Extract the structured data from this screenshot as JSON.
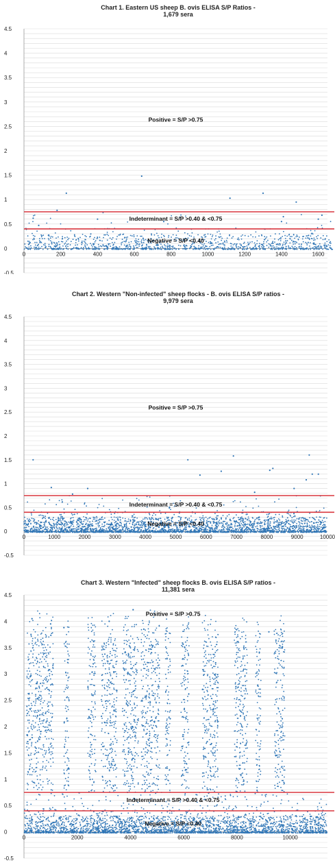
{
  "chart_data": [
    {
      "type": "scatter",
      "title": "Chart 1. Eastern US sheep B. ovis ELISA S/P Ratios -",
      "subtitle": "1,679 sera",
      "n": 1679,
      "xlim": [
        0,
        1650
      ],
      "ylim": [
        -0.5,
        4.5
      ],
      "xticks": [
        0,
        200,
        400,
        600,
        800,
        1000,
        1200,
        1400,
        1600
      ],
      "yticks": [
        -0.5,
        0,
        0.5,
        1,
        1.5,
        2,
        2.5,
        3,
        3.5,
        4,
        4.5
      ],
      "ytick_labels": [
        "-0.5",
        "0",
        "0.5",
        "1",
        "1.5",
        "2",
        "2.5",
        "3",
        "3.5",
        "4",
        "4.5"
      ],
      "grid": true,
      "marker_color": "#2e75b6",
      "threshold_color": "#d9363e",
      "thresholds": [
        0.75,
        0.4
      ],
      "annotations": [
        {
          "text": "Positive = S/P >0.75",
          "x": 825,
          "y": 2.6
        },
        {
          "text": "Indeterminant = S/P >0.40 & <0.75",
          "x": 825,
          "y": 0.57
        },
        {
          "text": "Negative = S/P <0.40",
          "x": 825,
          "y": 0.12
        }
      ],
      "highlighted_points": [
        [
          50,
          0.62
        ],
        [
          80,
          0.47
        ],
        [
          180,
          0.78
        ],
        [
          230,
          1.13
        ],
        [
          400,
          0.6
        ],
        [
          640,
          1.48
        ],
        [
          760,
          0.55
        ],
        [
          1120,
          1.03
        ],
        [
          1300,
          1.13
        ],
        [
          1410,
          0.65
        ],
        [
          1400,
          0.55
        ],
        [
          1480,
          0.95
        ],
        [
          1600,
          0.6
        ],
        [
          1620,
          0.68
        ]
      ]
    },
    {
      "type": "scatter",
      "title": "Chart 2.  Western \"Non-infected\" sheep flocks - B. ovis ELISA S/P ratios -",
      "subtitle": "9,979 sera",
      "n": 9979,
      "xlim": [
        0,
        10000
      ],
      "ylim": [
        -0.5,
        4.5
      ],
      "xticks": [
        0,
        1000,
        2000,
        3000,
        4000,
        5000,
        6000,
        7000,
        8000,
        9000,
        10000
      ],
      "yticks": [
        -0.5,
        0,
        0.5,
        1,
        1.5,
        2,
        2.5,
        3,
        3.5,
        4,
        4.5
      ],
      "ytick_labels": [
        "-0.5",
        "0",
        "0.5",
        "1",
        "1.5",
        "2",
        "2.5",
        "3",
        "3.5",
        "4",
        "4.5"
      ],
      "grid": true,
      "marker_color": "#2e75b6",
      "threshold_color": "#d9363e",
      "thresholds": [
        0.75,
        0.4
      ],
      "annotations": [
        {
          "text": "Positive = S/P >0.75",
          "x": 5000,
          "y": 2.55
        },
        {
          "text": "Indeterminant = S/P >0.40 & <0.75",
          "x": 5000,
          "y": 0.52
        },
        {
          "text": "Negative = S/P <0.40",
          "x": 5000,
          "y": 0.12
        }
      ],
      "highlighted_points": [
        [
          300,
          1.5
        ],
        [
          900,
          0.92
        ],
        [
          1600,
          0.78
        ],
        [
          2100,
          0.9
        ],
        [
          5400,
          1.5
        ],
        [
          5800,
          1.18
        ],
        [
          6500,
          1.26
        ],
        [
          6900,
          1.58
        ],
        [
          7600,
          0.82
        ],
        [
          8100,
          1.28
        ],
        [
          8200,
          1.32
        ],
        [
          8900,
          0.9
        ],
        [
          9300,
          1.08
        ],
        [
          9400,
          1.6
        ],
        [
          9500,
          1.2
        ],
        [
          9700,
          1.2
        ]
      ]
    },
    {
      "type": "scatter",
      "title": "Chart 3.  Western \"Infected\" sheep flocks B. ovis ELISA S/P ratios -",
      "subtitle": "11,381 sera",
      "n": 11381,
      "xlim": [
        0,
        11400
      ],
      "ylim": [
        -0.5,
        4.5
      ],
      "xticks": [
        0,
        2000,
        4000,
        6000,
        8000,
        10000
      ],
      "yticks": [
        -0.5,
        0,
        0.5,
        1,
        1.5,
        2,
        2.5,
        3,
        3.5,
        4,
        4.5
      ],
      "ytick_labels": [
        "-0.5",
        "0",
        "0.5",
        "1",
        "1.5",
        "2",
        "2.5",
        "3",
        "3.5",
        "4",
        "4.5"
      ],
      "grid": true,
      "marker_color": "#2e75b6",
      "threshold_color": "#d9363e",
      "thresholds": [
        0.75,
        0.4
      ],
      "annotations": [
        {
          "text": "Positive = S/P >0.75",
          "x": 5600,
          "y": 4.1
        },
        {
          "text": "Indeterminant = S/P >0.40 & <0.75",
          "x": 5600,
          "y": 0.57
        },
        {
          "text": "Negative = S/P <0.40",
          "x": 5600,
          "y": 0.12
        }
      ],
      "positive_clusters": [
        [
          100,
          700
        ],
        [
          700,
          1100
        ],
        [
          1500,
          1700
        ],
        [
          2400,
          2700
        ],
        [
          2900,
          3500
        ],
        [
          3700,
          4300
        ],
        [
          4400,
          5100
        ],
        [
          5300,
          5500
        ],
        [
          5900,
          6200
        ],
        [
          6700,
          7300
        ],
        [
          7900,
          8400
        ],
        [
          8700,
          8900
        ],
        [
          9400,
          9800
        ]
      ],
      "highlighted_points": [
        [
          300,
          4.05
        ],
        [
          1000,
          3.95
        ],
        [
          1500,
          3.88
        ],
        [
          3200,
          4.0
        ],
        [
          4100,
          4.22
        ],
        [
          4500,
          3.85
        ],
        [
          9200,
          3.8
        ]
      ]
    }
  ]
}
